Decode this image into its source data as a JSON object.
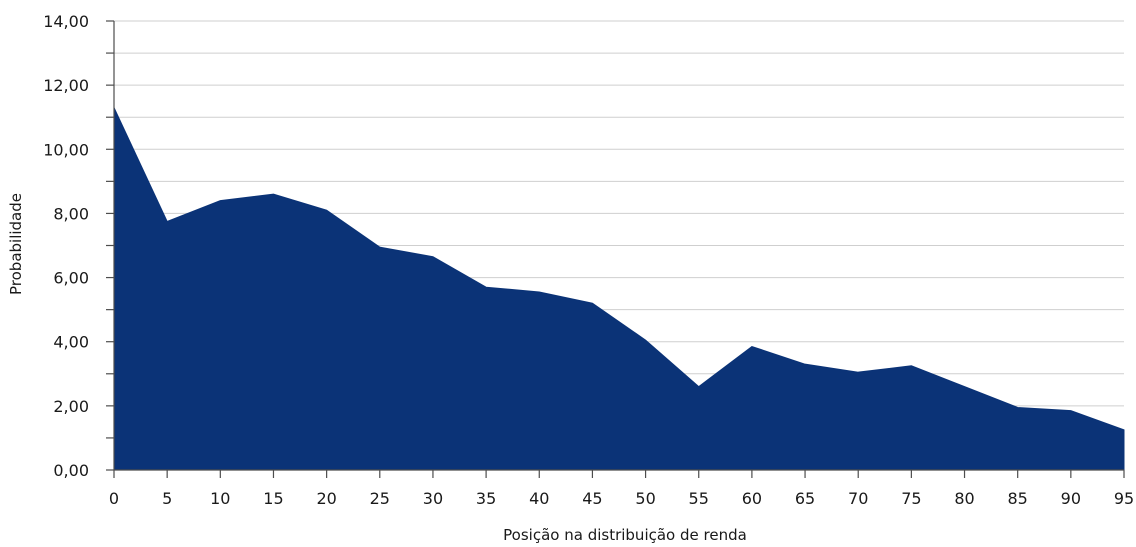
{
  "chart_data": {
    "type": "area",
    "title": "",
    "xlabel": "Posição na distribuição de renda",
    "ylabel": "Probabilidade",
    "x": [
      0,
      5,
      10,
      15,
      20,
      25,
      30,
      35,
      40,
      45,
      50,
      55,
      60,
      65,
      70,
      75,
      80,
      85,
      90,
      95
    ],
    "series": [
      {
        "values": [
          11.3,
          7.75,
          8.4,
          8.6,
          8.1,
          6.95,
          6.65,
          5.7,
          5.55,
          5.2,
          4.05,
          2.6,
          3.85,
          3.3,
          3.05,
          3.25,
          2.6,
          1.95,
          1.85,
          1.25
        ]
      }
    ],
    "ylim": [
      0,
      14
    ],
    "yticks": [
      "0,00",
      "2,00",
      "4,00",
      "6,00",
      "8,00",
      "10,00",
      "12,00",
      "14,00"
    ],
    "xticks": [
      "0",
      "5",
      "10",
      "15",
      "20",
      "25",
      "30",
      "35",
      "40",
      "45",
      "50",
      "55",
      "60",
      "65",
      "70",
      "75",
      "80",
      "85",
      "90",
      "95"
    ],
    "grid": true,
    "fill_color": "#0b3377"
  }
}
